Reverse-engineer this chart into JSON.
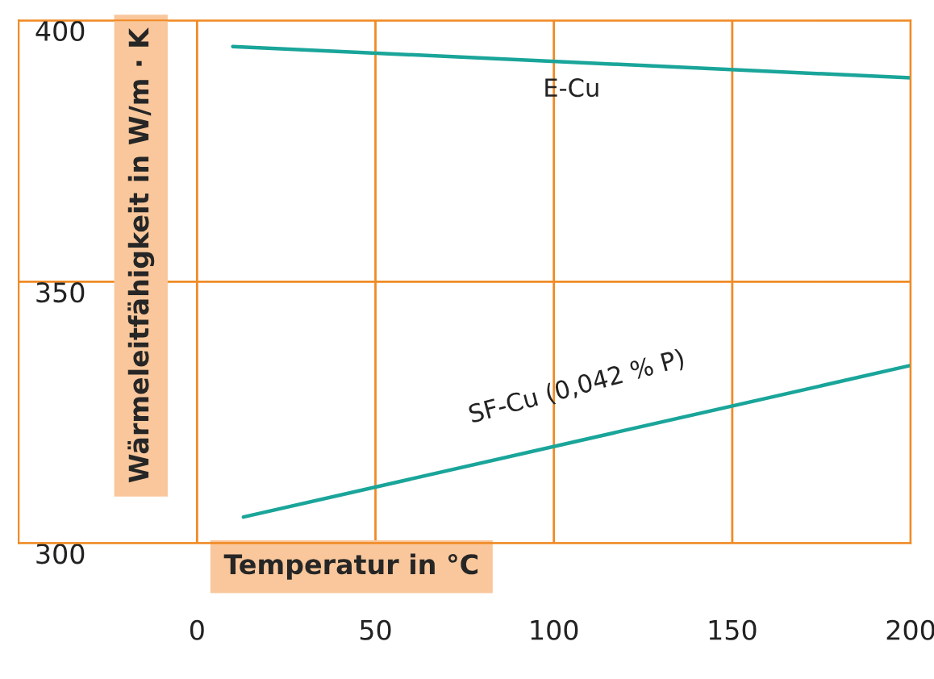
{
  "chart_data": {
    "type": "line",
    "xlabel": "Temperatur in °C",
    "ylabel": "Wärmeleitfähigkeit in W/m · K",
    "series": [
      {
        "name": "E-Cu",
        "color": "#1aa59a",
        "x": [
          10,
          200
        ],
        "values": [
          395,
          389
        ]
      },
      {
        "name": "SF-Cu (0,042 % P)",
        "color": "#1aa59a",
        "x": [
          13,
          200
        ],
        "values": [
          305,
          334
        ]
      }
    ],
    "xlim": [
      -50,
      200
    ],
    "xticks": [
      0,
      50,
      100,
      150,
      200
    ],
    "ylim": [
      300,
      400
    ],
    "yticks": [
      300,
      350,
      400
    ],
    "grid": true,
    "marker": "none",
    "line_style": "solid",
    "legend": false
  }
}
